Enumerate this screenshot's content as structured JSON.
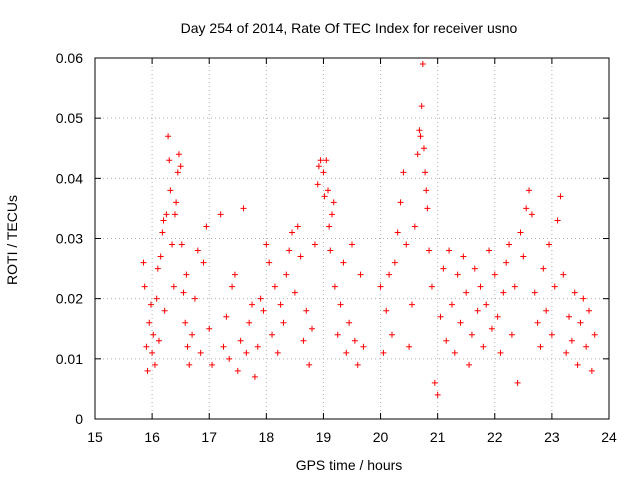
{
  "chart_data": {
    "type": "scatter",
    "title": "Day 254 of 2014, Rate Of TEC Index for receiver usno",
    "xlabel": "GPS time / hours",
    "ylabel": "ROTI / TECUs",
    "xlim": [
      15,
      24
    ],
    "ylim": [
      0,
      0.06
    ],
    "xticks": [
      15,
      16,
      17,
      18,
      19,
      20,
      21,
      22,
      23,
      24
    ],
    "xtick_labels": [
      "15",
      "16",
      "17",
      "18",
      "19",
      "20",
      "21",
      "22",
      "23",
      "24"
    ],
    "yticks": [
      0,
      0.01,
      0.02,
      0.03,
      0.04,
      0.05,
      0.06
    ],
    "ytick_labels": [
      "0",
      "0.01",
      "0.02",
      "0.03",
      "0.04",
      "0.05",
      "0.06"
    ],
    "grid": true,
    "marker": "+",
    "color": "#ff0000",
    "series": [
      {
        "name": "ROTI",
        "points": [
          [
            15.85,
            0.026
          ],
          [
            15.87,
            0.022
          ],
          [
            15.9,
            0.012
          ],
          [
            15.92,
            0.008
          ],
          [
            15.95,
            0.016
          ],
          [
            15.98,
            0.019
          ],
          [
            16.0,
            0.011
          ],
          [
            16.02,
            0.014
          ],
          [
            16.05,
            0.009
          ],
          [
            16.08,
            0.02
          ],
          [
            16.1,
            0.025
          ],
          [
            16.12,
            0.013
          ],
          [
            16.15,
            0.027
          ],
          [
            16.18,
            0.031
          ],
          [
            16.2,
            0.033
          ],
          [
            16.22,
            0.018
          ],
          [
            16.25,
            0.034
          ],
          [
            16.28,
            0.047
          ],
          [
            16.3,
            0.043
          ],
          [
            16.32,
            0.038
          ],
          [
            16.35,
            0.029
          ],
          [
            16.38,
            0.022
          ],
          [
            16.4,
            0.034
          ],
          [
            16.42,
            0.036
          ],
          [
            16.45,
            0.041
          ],
          [
            16.47,
            0.044
          ],
          [
            16.5,
            0.042
          ],
          [
            16.52,
            0.029
          ],
          [
            16.55,
            0.021
          ],
          [
            16.58,
            0.016
          ],
          [
            16.6,
            0.024
          ],
          [
            16.62,
            0.012
          ],
          [
            16.65,
            0.009
          ],
          [
            16.7,
            0.014
          ],
          [
            16.75,
            0.02
          ],
          [
            16.8,
            0.028
          ],
          [
            16.85,
            0.011
          ],
          [
            16.9,
            0.026
          ],
          [
            16.95,
            0.032
          ],
          [
            17.0,
            0.015
          ],
          [
            17.05,
            0.009
          ],
          [
            17.2,
            0.034
          ],
          [
            17.25,
            0.012
          ],
          [
            17.3,
            0.017
          ],
          [
            17.35,
            0.01
          ],
          [
            17.4,
            0.022
          ],
          [
            17.45,
            0.024
          ],
          [
            17.5,
            0.008
          ],
          [
            17.55,
            0.013
          ],
          [
            17.6,
            0.035
          ],
          [
            17.65,
            0.011
          ],
          [
            17.7,
            0.016
          ],
          [
            17.75,
            0.019
          ],
          [
            17.8,
            0.007
          ],
          [
            17.85,
            0.012
          ],
          [
            17.9,
            0.02
          ],
          [
            17.95,
            0.018
          ],
          [
            18.0,
            0.029
          ],
          [
            18.05,
            0.026
          ],
          [
            18.1,
            0.014
          ],
          [
            18.15,
            0.022
          ],
          [
            18.2,
            0.011
          ],
          [
            18.25,
            0.019
          ],
          [
            18.3,
            0.016
          ],
          [
            18.35,
            0.024
          ],
          [
            18.4,
            0.028
          ],
          [
            18.45,
            0.031
          ],
          [
            18.5,
            0.021
          ],
          [
            18.55,
            0.032
          ],
          [
            18.6,
            0.027
          ],
          [
            18.65,
            0.013
          ],
          [
            18.7,
            0.018
          ],
          [
            18.75,
            0.009
          ],
          [
            18.8,
            0.015
          ],
          [
            18.85,
            0.029
          ],
          [
            18.9,
            0.039
          ],
          [
            18.92,
            0.042
          ],
          [
            18.95,
            0.043
          ],
          [
            19.0,
            0.041
          ],
          [
            19.02,
            0.037
          ],
          [
            19.05,
            0.043
          ],
          [
            19.08,
            0.038
          ],
          [
            19.1,
            0.032
          ],
          [
            19.12,
            0.028
          ],
          [
            19.15,
            0.034
          ],
          [
            19.18,
            0.036
          ],
          [
            19.2,
            0.022
          ],
          [
            19.25,
            0.014
          ],
          [
            19.3,
            0.019
          ],
          [
            19.35,
            0.026
          ],
          [
            19.4,
            0.011
          ],
          [
            19.45,
            0.016
          ],
          [
            19.5,
            0.029
          ],
          [
            19.55,
            0.013
          ],
          [
            19.6,
            0.009
          ],
          [
            19.65,
            0.024
          ],
          [
            19.7,
            0.012
          ],
          [
            20.0,
            0.022
          ],
          [
            20.05,
            0.011
          ],
          [
            20.1,
            0.018
          ],
          [
            20.15,
            0.024
          ],
          [
            20.2,
            0.014
          ],
          [
            20.25,
            0.026
          ],
          [
            20.3,
            0.031
          ],
          [
            20.35,
            0.036
          ],
          [
            20.4,
            0.041
          ],
          [
            20.45,
            0.029
          ],
          [
            20.5,
            0.012
          ],
          [
            20.55,
            0.019
          ],
          [
            20.6,
            0.032
          ],
          [
            20.65,
            0.044
          ],
          [
            20.68,
            0.048
          ],
          [
            20.7,
            0.047
          ],
          [
            20.72,
            0.052
          ],
          [
            20.74,
            0.059
          ],
          [
            20.76,
            0.045
          ],
          [
            20.78,
            0.041
          ],
          [
            20.8,
            0.038
          ],
          [
            20.82,
            0.035
          ],
          [
            20.85,
            0.028
          ],
          [
            20.9,
            0.022
          ],
          [
            20.95,
            0.006
          ],
          [
            21.0,
            0.004
          ],
          [
            21.05,
            0.017
          ],
          [
            21.1,
            0.025
          ],
          [
            21.15,
            0.013
          ],
          [
            21.2,
            0.028
          ],
          [
            21.25,
            0.019
          ],
          [
            21.3,
            0.011
          ],
          [
            21.35,
            0.024
          ],
          [
            21.4,
            0.016
          ],
          [
            21.45,
            0.027
          ],
          [
            21.5,
            0.021
          ],
          [
            21.55,
            0.009
          ],
          [
            21.6,
            0.014
          ],
          [
            21.65,
            0.025
          ],
          [
            21.7,
            0.018
          ],
          [
            21.75,
            0.022
          ],
          [
            21.8,
            0.012
          ],
          [
            21.85,
            0.019
          ],
          [
            21.9,
            0.028
          ],
          [
            21.95,
            0.015
          ],
          [
            22.0,
            0.024
          ],
          [
            22.05,
            0.017
          ],
          [
            22.1,
            0.011
          ],
          [
            22.15,
            0.021
          ],
          [
            22.2,
            0.026
          ],
          [
            22.25,
            0.029
          ],
          [
            22.3,
            0.014
          ],
          [
            22.35,
            0.022
          ],
          [
            22.4,
            0.006
          ],
          [
            22.45,
            0.031
          ],
          [
            22.5,
            0.027
          ],
          [
            22.55,
            0.035
          ],
          [
            22.6,
            0.038
          ],
          [
            22.65,
            0.034
          ],
          [
            22.7,
            0.021
          ],
          [
            22.75,
            0.016
          ],
          [
            22.8,
            0.012
          ],
          [
            22.85,
            0.025
          ],
          [
            22.9,
            0.018
          ],
          [
            22.95,
            0.029
          ],
          [
            23.0,
            0.014
          ],
          [
            23.05,
            0.022
          ],
          [
            23.1,
            0.033
          ],
          [
            23.15,
            0.037
          ],
          [
            23.2,
            0.024
          ],
          [
            23.25,
            0.011
          ],
          [
            23.3,
            0.017
          ],
          [
            23.35,
            0.013
          ],
          [
            23.4,
            0.021
          ],
          [
            23.45,
            0.009
          ],
          [
            23.5,
            0.016
          ],
          [
            23.55,
            0.02
          ],
          [
            23.6,
            0.012
          ],
          [
            23.65,
            0.018
          ],
          [
            23.7,
            0.008
          ],
          [
            23.75,
            0.014
          ]
        ]
      }
    ]
  }
}
